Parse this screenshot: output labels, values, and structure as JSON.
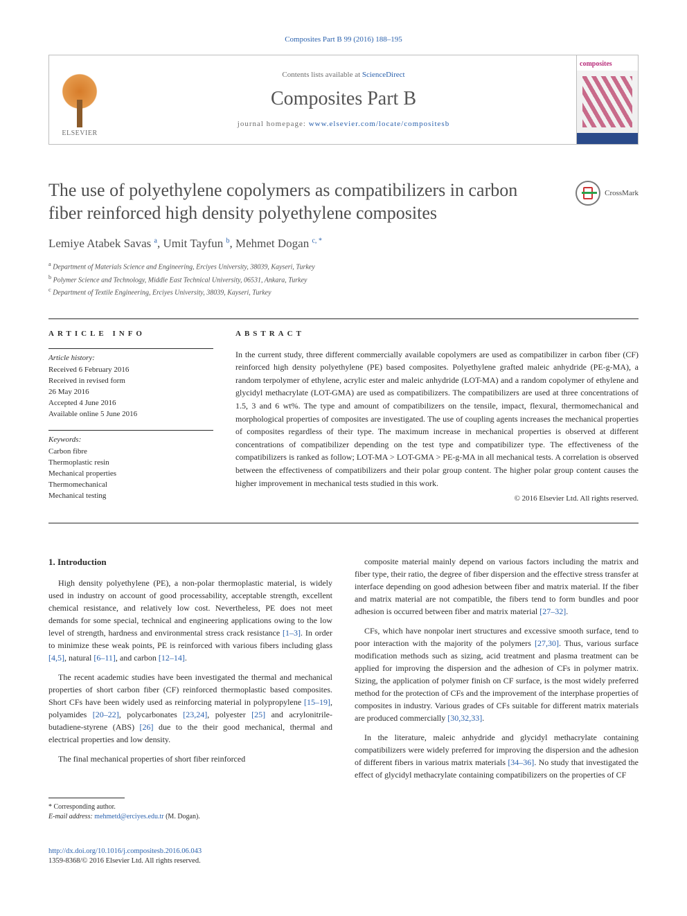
{
  "citation": {
    "text": "Composites Part B 99 (2016) 188–195"
  },
  "header": {
    "publisher_logo_label": "ELSEVIER",
    "contents_prefix": "Contents lists available at ",
    "contents_link": "ScienceDirect",
    "journal_name": "Composites Part B",
    "homepage_prefix": "journal homepage: ",
    "homepage_link": "www.elsevier.com/locate/compositesb",
    "cover_label": "composites"
  },
  "article": {
    "title": "The use of polyethylene copolymers as compatibilizers in carbon fiber reinforced high density polyethylene composites",
    "crossmark": "CrossMark",
    "authors_html": "Lemiye Atabek Savas <sup>a</sup>, Umit Tayfun <sup>b</sup>, Mehmet Dogan <sup>c, *</sup>",
    "affiliations": [
      {
        "sup": "a",
        "text": "Department of Materials Science and Engineering, Erciyes University, 38039, Kayseri, Turkey"
      },
      {
        "sup": "b",
        "text": "Polymer Science and Technology, Middle East Technical University, 06531, Ankara, Turkey"
      },
      {
        "sup": "c",
        "text": "Department of Textile Engineering, Erciyes University, 38039, Kayseri, Turkey"
      }
    ]
  },
  "info": {
    "head": "ARTICLE INFO",
    "history_label": "Article history:",
    "history": "Received 6 February 2016\nReceived in revised form\n26 May 2016\nAccepted 4 June 2016\nAvailable online 5 June 2016",
    "keywords_label": "Keywords:",
    "keywords": "Carbon fibre\nThermoplastic resin\nMechanical properties\nThermomechanical\nMechanical testing"
  },
  "abstract": {
    "head": "ABSTRACT",
    "text": "In the current study, three different commercially available copolymers are used as compatibilizer in carbon fiber (CF) reinforced high density polyethylene (PE) based composites. Polyethylene grafted maleic anhydride (PE-g-MA), a random terpolymer of ethylene, acrylic ester and maleic anhydride (LOT-MA) and a random copolymer of ethylene and glycidyl methacrylate (LOT-GMA) are used as compatibilizers. The compatibilizers are used at three concentrations of 1.5, 3 and 6 wt%. The type and amount of compatibilizers on the tensile, impact, flexural, thermomechanical and morphological properties of composites are investigated. The use of coupling agents increases the mechanical properties of composites regardless of their type. The maximum increase in mechanical properties is observed at different concentrations of compatibilizer depending on the test type and compatibilizer type. The effectiveness of the compatibilizers is ranked as follow; LOT-MA > LOT-GMA > PE-g-MA in all mechanical tests. A correlation is observed between the effectiveness of compatibilizers and their polar group content. The higher polar group content causes the higher improvement in mechanical tests studied in this work.",
    "copyright": "© 2016 Elsevier Ltd. All rights reserved."
  },
  "body": {
    "h1": "1. Introduction",
    "p1a": "High density polyethylene (PE), a non-polar thermoplastic material, is widely used in industry on account of good processability, acceptable strength, excellent chemical resistance, and relatively low cost. Nevertheless, PE does not meet demands for some special, technical and engineering applications owing to the low level of strength, hardness and environmental stress crack resistance ",
    "r1": "[1–3]",
    "p1b": ". In order to minimize these weak points, PE is reinforced with various fibers including glass ",
    "r2": "[4,5]",
    "p1c": ", natural ",
    "r3": "[6–11]",
    "p1d": ", and carbon ",
    "r4": "[12–14]",
    "p1e": ".",
    "p2a": "The recent academic studies have been investigated the thermal and mechanical properties of short carbon fiber (CF) reinforced thermoplastic based composites. Short CFs have been widely used as reinforcing material in polypropylene ",
    "r5": "[15–19]",
    "p2b": ", polyamides ",
    "r6": "[20–22]",
    "p2c": ", polycarbonates ",
    "r7": "[23,24]",
    "p2d": ", polyester ",
    "r8": "[25]",
    "p2e": " and acrylonitrile-butadiene-styrene (ABS) ",
    "r9": "[26]",
    "p2f": " due to the their good mechanical, thermal and electrical properties and low density.",
    "p3": "The final mechanical properties of short fiber reinforced",
    "p4a": "composite material mainly depend on various factors including the matrix and fiber type, their ratio, the degree of fiber dispersion and the effective stress transfer at interface depending on good adhesion between fiber and matrix material. If the fiber and matrix material are not compatible, the fibers tend to form bundles and poor adhesion is occurred between fiber and matrix material ",
    "r10": "[27–32]",
    "p4b": ".",
    "p5a": "CFs, which have nonpolar inert structures and excessive smooth surface, tend to poor interaction with the majority of the polymers ",
    "r11": "[27,30]",
    "p5b": ". Thus, various surface modification methods such as sizing, acid treatment and plasma treatment can be applied for improving the dispersion and the adhesion of CFs in polymer matrix. Sizing, the application of polymer finish on CF surface, is the most widely preferred method for the protection of CFs and the improvement of the interphase properties of composites in industry. Various grades of CFs suitable for different matrix materials are produced commercially ",
    "r12": "[30,32,33]",
    "p5c": ".",
    "p6a": "In the literature, maleic anhydride and glycidyl methacrylate containing compatibilizers were widely preferred for improving the dispersion and the adhesion of different fibers in various matrix materials ",
    "r13": "[34–36]",
    "p6b": ". No study that investigated the effect of glycidyl methacrylate containing compatibilizers on the properties of CF"
  },
  "footnotes": {
    "corr": "* Corresponding author.",
    "email_label": "E-mail address: ",
    "email": "mehmetd@erciyes.edu.tr",
    "email_suffix": " (M. Dogan)."
  },
  "bottom": {
    "doi": "http://dx.doi.org/10.1016/j.compositesb.2016.06.043",
    "issn_line": "1359-8368/© 2016 Elsevier Ltd. All rights reserved."
  },
  "colors": {
    "link": "#2a61ad",
    "text": "#2b2b2b"
  }
}
